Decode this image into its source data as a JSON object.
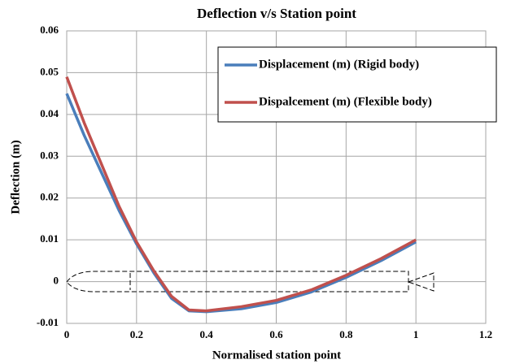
{
  "chart_data": {
    "type": "line",
    "title": "Deflection v/s Station point",
    "x_label": "Normalised station point",
    "y_label": "Deflection (m)",
    "x": [
      0,
      0.05,
      0.1,
      0.15,
      0.2,
      0.25,
      0.3,
      0.35,
      0.4,
      0.5,
      0.6,
      0.7,
      0.8,
      0.9,
      1
    ],
    "series": [
      {
        "name": "Displacement (m) (Rigid body)",
        "color": "#4a7ebb",
        "values": [
          0.045,
          0.035,
          0.026,
          0.017,
          0.009,
          0.002,
          -0.004,
          -0.007,
          -0.0072,
          -0.0065,
          -0.005,
          -0.0025,
          0.001,
          0.005,
          0.0095
        ]
      },
      {
        "name": "Dispalcement (m) (Flexible body)",
        "color": "#c0504d",
        "values": [
          0.049,
          0.038,
          0.028,
          0.018,
          0.0095,
          0.0025,
          -0.0035,
          -0.0068,
          -0.007,
          -0.006,
          -0.0045,
          -0.002,
          0.0015,
          0.0055,
          0.01
        ]
      }
    ],
    "xlim": [
      0,
      1.2
    ],
    "xticks": [
      0,
      0.2,
      0.4,
      0.6,
      0.8,
      1,
      1.2
    ],
    "ylim": [
      -0.01,
      0.06
    ],
    "yticks": [
      -0.01,
      0,
      0.01,
      0.02,
      0.03,
      0.04,
      0.05,
      0.06
    ],
    "grid": true,
    "legend": "top-right"
  }
}
